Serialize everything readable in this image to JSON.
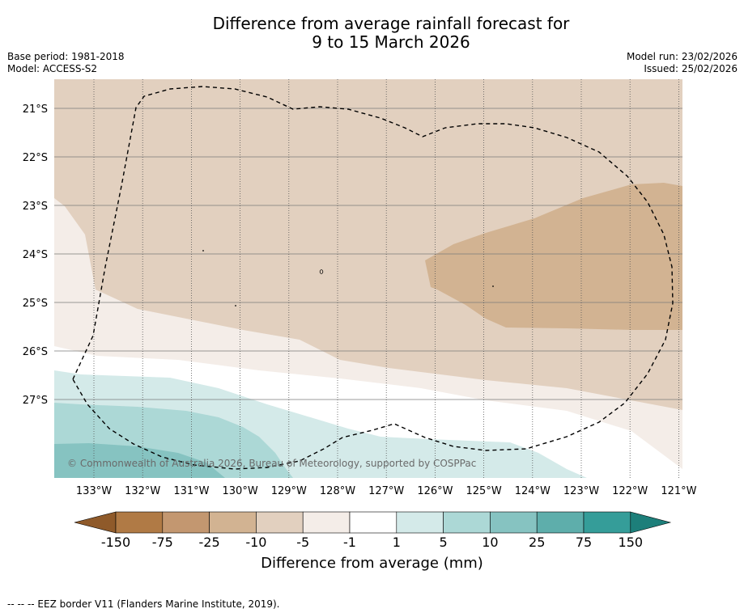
{
  "title": {
    "line1": "Difference from average rainfall forecast for",
    "line2": "9 to 15 March 2026"
  },
  "meta": {
    "base_period": "Base period: 1981-2018",
    "model": "Model: ACCESS-S2",
    "model_run": "Model run: 23/02/2026",
    "issued": "Issued: 25/02/2026"
  },
  "map": {
    "lat_labels": [
      "21°S",
      "22°S",
      "23°S",
      "24°S",
      "25°S",
      "26°S",
      "27°S"
    ],
    "lon_labels": [
      "133°W",
      "132°W",
      "131°W",
      "130°W",
      "129°W",
      "128°W",
      "127°W",
      "126°W",
      "125°W",
      "124°W",
      "123°W",
      "122°W",
      "121°W"
    ],
    "copyright": "© Commonwealth of Australia 2026, Bureau of Meteorology, supported by COSPPac"
  },
  "colorbar": {
    "labels": [
      "-150",
      "-75",
      "-25",
      "-10",
      "-5",
      "-1",
      "1",
      "5",
      "10",
      "25",
      "75",
      "150"
    ],
    "colors": [
      "#8f5a2a",
      "#b07a45",
      "#c39770",
      "#d2b392",
      "#e2d0bf",
      "#f4ede8",
      "#ffffff",
      "#d4eae9",
      "#acd8d6",
      "#86c3c1",
      "#5eaeab",
      "#359d99",
      "#1d7f7a"
    ],
    "title": "Difference from average (mm)"
  },
  "footer": {
    "legend_text": "--  --  -- EEZ border V11 (Flanders Marine Institute, 2019)."
  }
}
